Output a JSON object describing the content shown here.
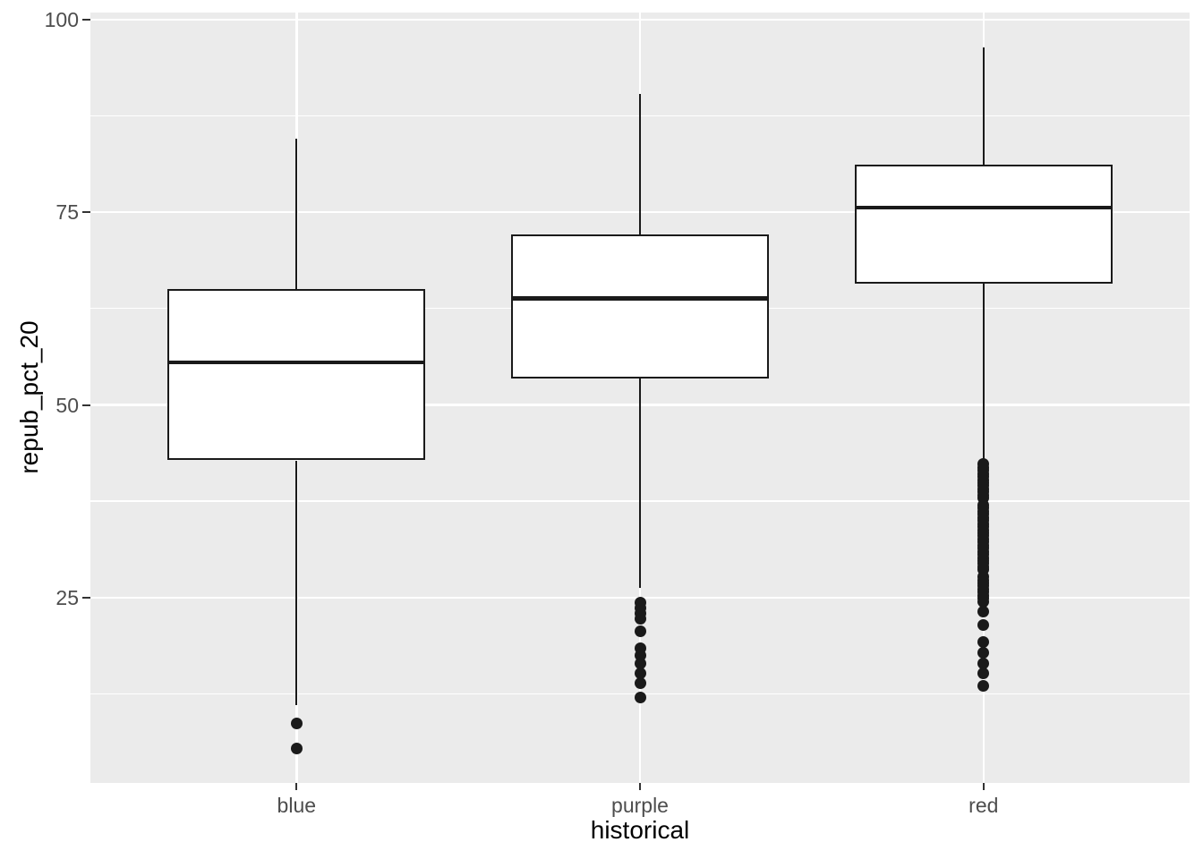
{
  "chart_data": {
    "type": "boxplot",
    "title": "",
    "xlabel": "historical",
    "ylabel": "repub_pct_20",
    "categories": [
      "blue",
      "purple",
      "red"
    ],
    "ylim": [
      0.95,
      100.9
    ],
    "y_ticks_major": [
      100,
      75,
      50,
      25
    ],
    "y_ticks_minor": [
      87.5,
      62.5,
      37.5,
      12.5
    ],
    "grid": "white horizontal major+minor lines; white vertical major line at each category",
    "legend": "none",
    "series": [
      {
        "name": "blue",
        "whisker_low": 11.0,
        "q1": 42.8,
        "median": 55.5,
        "q3": 65.0,
        "whisker_high": 84.5,
        "outliers": [
          8.7,
          5.4
        ]
      },
      {
        "name": "purple",
        "whisker_low": 26.3,
        "q1": 53.4,
        "median": 63.8,
        "q3": 72.1,
        "whisker_high": 90.3,
        "outliers": [
          24.4,
          23.7,
          23.0,
          22.2,
          20.6,
          18.4,
          17.5,
          16.4,
          15.2,
          13.9,
          12.0
        ]
      },
      {
        "name": "red",
        "whisker_low": 42.5,
        "q1": 65.7,
        "median": 75.6,
        "q3": 81.2,
        "whisker_high": 96.4,
        "outliers": [
          42.3,
          41.9,
          41.5,
          41.1,
          40.7,
          40.3,
          39.9,
          39.5,
          39.1,
          38.7,
          38.3,
          37.9,
          37.0,
          36.6,
          36.2,
          35.8,
          35.4,
          35.0,
          34.6,
          34.2,
          33.8,
          33.4,
          33.0,
          32.6,
          32.2,
          31.8,
          31.4,
          31.0,
          30.6,
          30.2,
          29.8,
          29.4,
          29.0,
          28.6,
          27.7,
          27.3,
          26.9,
          26.5,
          26.1,
          25.7,
          25.3,
          24.9,
          24.5,
          23.2,
          21.5,
          19.2,
          17.9,
          16.5,
          15.2,
          13.5
        ]
      }
    ],
    "colors": {
      "figure_bg": "#FFFFFF",
      "panel_bg": "#EBEBEB",
      "gridline": "#FFFFFF",
      "box_stroke": "#1A1A1A",
      "box_fill": "#FFFFFF",
      "median": "#1A1A1A",
      "outlier": "#1A1A1A",
      "tick_mark": "#333333",
      "tick_label": "#4D4D4D",
      "axis_title": "#000000"
    }
  }
}
